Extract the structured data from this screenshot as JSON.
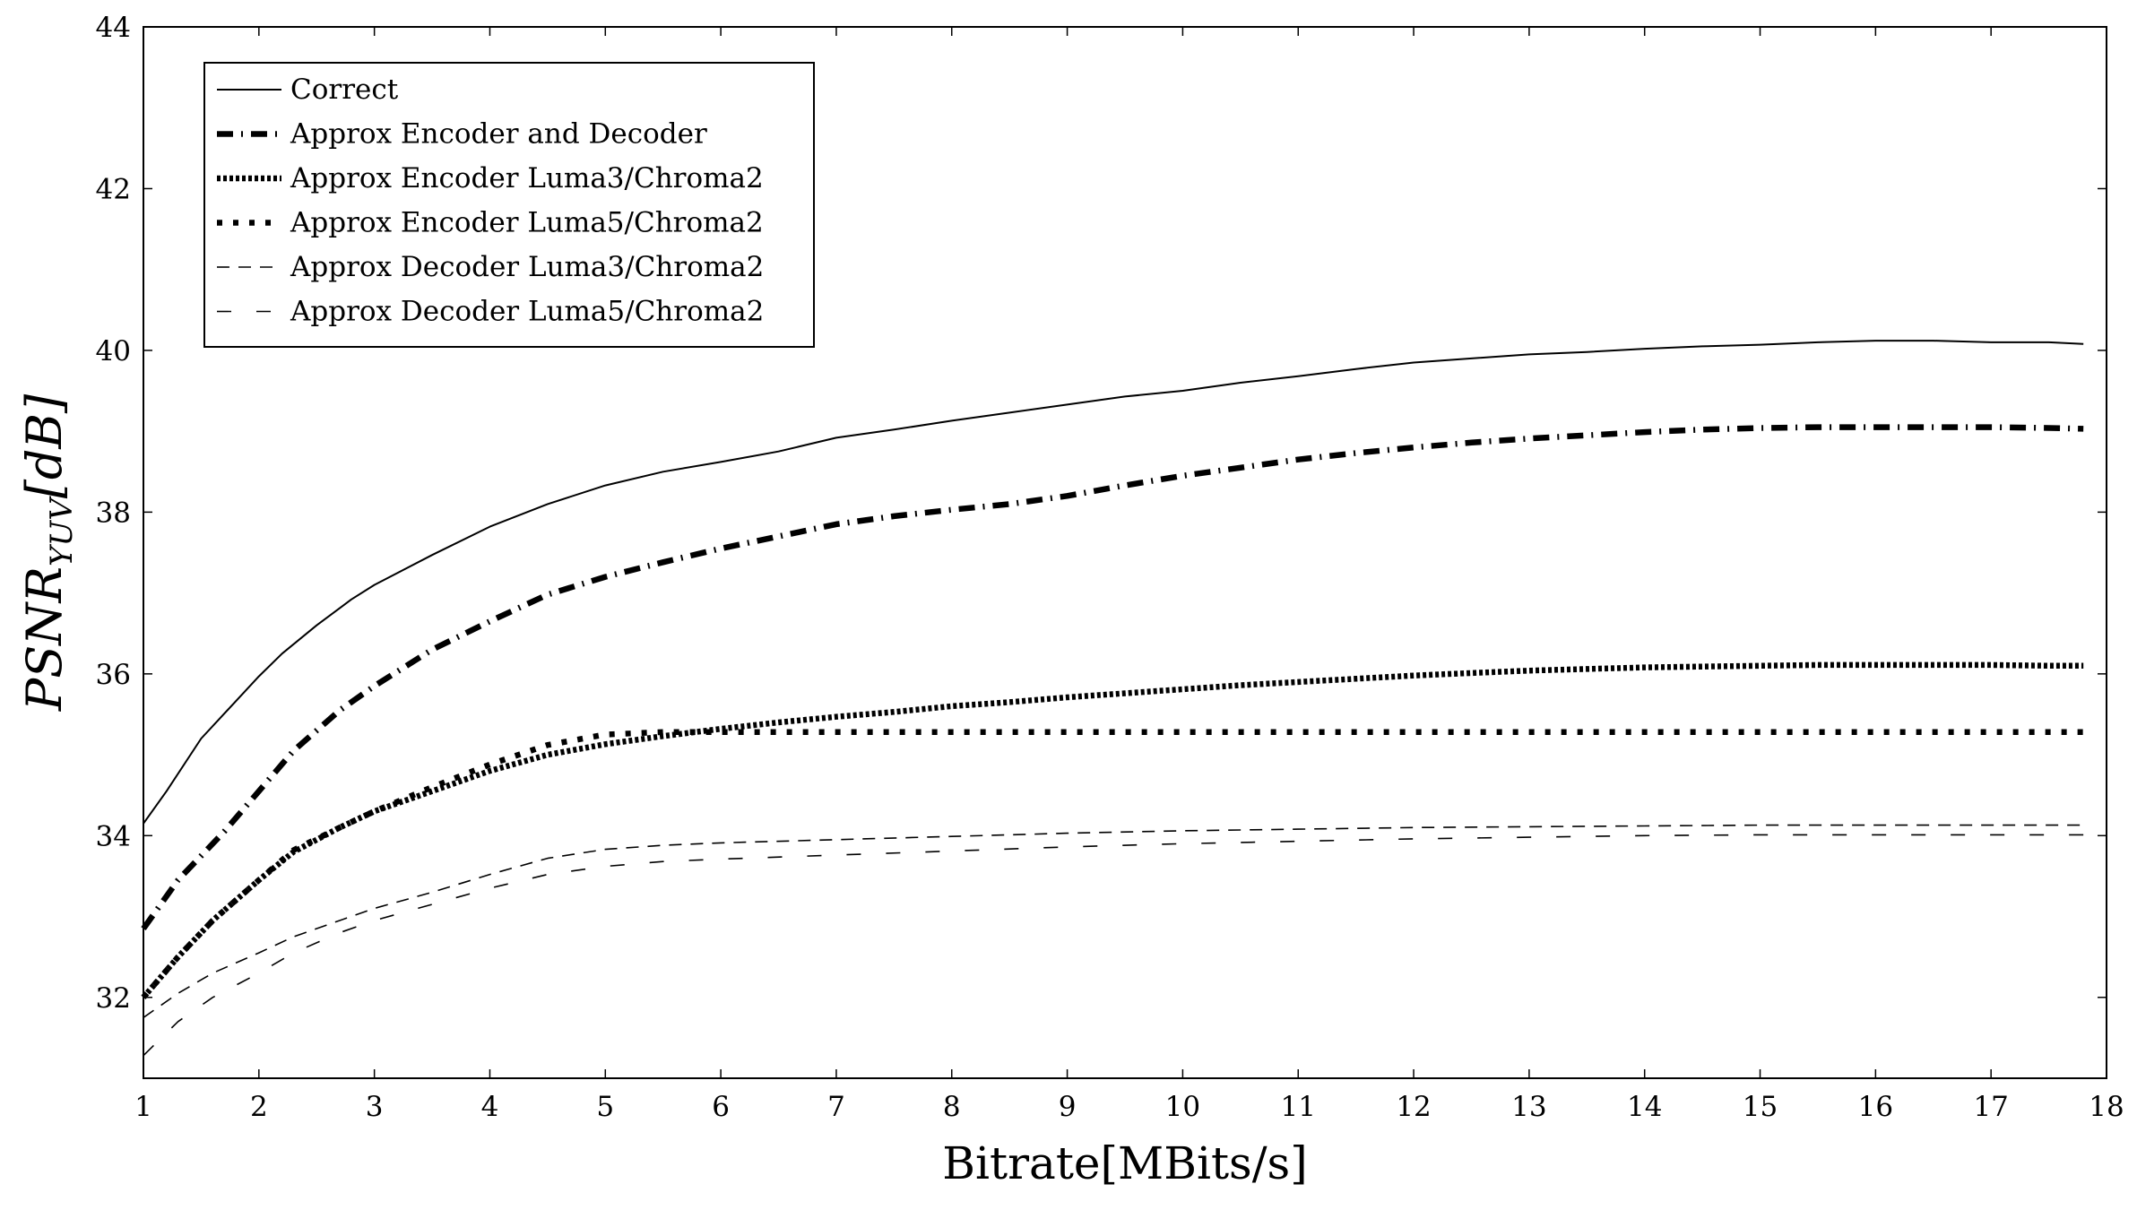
{
  "chart_data": {
    "type": "line",
    "xlabel": "Bitrate[MBits/s]",
    "ylabel": "PSNR",
    "ylabel_subscript": "YUV",
    "ylabel_unit": "[dB]",
    "xlim": [
      1,
      18
    ],
    "ylim": [
      31,
      44
    ],
    "x_ticks": [
      1,
      2,
      3,
      4,
      5,
      6,
      7,
      8,
      9,
      10,
      11,
      12,
      13,
      14,
      15,
      16,
      17,
      18
    ],
    "y_ticks": [
      32,
      34,
      36,
      38,
      40,
      42,
      44
    ],
    "grid": false,
    "legend_position": "top-left",
    "series": [
      {
        "name": "Correct",
        "style": "solid-thin",
        "x": [
          1,
          1.2,
          1.5,
          2,
          2.2,
          2.5,
          2.8,
          3,
          3.5,
          4,
          4.5,
          5,
          5.5,
          6,
          6.5,
          7,
          7.5,
          8,
          8.5,
          9,
          9.5,
          10,
          10.5,
          11,
          11.5,
          12,
          12.5,
          13,
          13.5,
          14,
          14.5,
          15,
          15.5,
          16,
          16.5,
          17,
          17.5,
          17.8
        ],
        "y": [
          34.15,
          34.55,
          35.2,
          35.97,
          36.25,
          36.6,
          36.92,
          37.1,
          37.47,
          37.82,
          38.1,
          38.33,
          38.5,
          38.62,
          38.75,
          38.92,
          39.02,
          39.13,
          39.23,
          39.33,
          39.43,
          39.5,
          39.6,
          39.68,
          39.77,
          39.85,
          39.9,
          39.95,
          39.98,
          40.02,
          40.05,
          40.07,
          40.1,
          40.12,
          40.12,
          40.1,
          40.1,
          40.08
        ]
      },
      {
        "name": "Approx Encoder and Decoder",
        "style": "dashdot-thick",
        "x": [
          1,
          1.3,
          1.7,
          2,
          2.3,
          2.7,
          3,
          3.5,
          4,
          4.5,
          5,
          5.5,
          6,
          6.5,
          7,
          7.5,
          8,
          8.5,
          9,
          9.5,
          10,
          10.5,
          11,
          11.5,
          12,
          12.5,
          13,
          13.5,
          14,
          14.5,
          15,
          15.5,
          16,
          16.5,
          17,
          17.5,
          17.8
        ],
        "y": [
          32.85,
          33.45,
          34.05,
          34.55,
          35.05,
          35.55,
          35.85,
          36.3,
          36.65,
          36.98,
          37.2,
          37.38,
          37.55,
          37.7,
          37.85,
          37.95,
          38.03,
          38.1,
          38.2,
          38.33,
          38.45,
          38.55,
          38.65,
          38.73,
          38.8,
          38.86,
          38.91,
          38.95,
          38.99,
          39.02,
          39.04,
          39.05,
          39.05,
          39.05,
          39.05,
          39.04,
          39.03
        ]
      },
      {
        "name": "Approx Encoder Luma3/Chroma2",
        "style": "densely-dotted-thick",
        "x": [
          1,
          1.3,
          1.6,
          2,
          2.3,
          2.7,
          3,
          3.5,
          4,
          4.5,
          5,
          5.5,
          6,
          6.5,
          7,
          7.5,
          8,
          8.5,
          9,
          9.5,
          10,
          10.5,
          11,
          11.5,
          12,
          12.5,
          13,
          13.5,
          14,
          14.5,
          15,
          15.5,
          16,
          16.5,
          17,
          17.5,
          17.8
        ],
        "y": [
          32,
          32.5,
          32.95,
          33.45,
          33.8,
          34.1,
          34.3,
          34.55,
          34.8,
          35.0,
          35.13,
          35.23,
          35.32,
          35.4,
          35.47,
          35.53,
          35.6,
          35.65,
          35.71,
          35.76,
          35.81,
          35.86,
          35.9,
          35.94,
          35.98,
          36.01,
          36.04,
          36.06,
          36.08,
          36.09,
          36.1,
          36.11,
          36.11,
          36.11,
          36.11,
          36.1,
          36.1
        ]
      },
      {
        "name": "Approx Encoder Luma5/Chroma2",
        "style": "dotted-thick",
        "x": [
          1,
          1.3,
          1.6,
          2,
          2.3,
          2.7,
          3,
          3.5,
          4,
          4.5,
          5,
          5.5,
          6,
          7,
          8,
          9,
          10,
          11,
          12,
          13,
          14,
          15,
          16,
          17,
          17.8
        ],
        "y": [
          32,
          32.5,
          32.95,
          33.45,
          33.82,
          34.1,
          34.3,
          34.6,
          34.88,
          35.12,
          35.25,
          35.28,
          35.28,
          35.28,
          35.28,
          35.28,
          35.28,
          35.28,
          35.28,
          35.28,
          35.28,
          35.28,
          35.28,
          35.28,
          35.28
        ]
      },
      {
        "name": "Approx Decoder Luma3/Chroma2",
        "style": "dashed-thin",
        "x": [
          1,
          1.3,
          1.6,
          2,
          2.3,
          2.7,
          3,
          3.5,
          4,
          4.5,
          5,
          5.5,
          6,
          7,
          8,
          9,
          10,
          11,
          12,
          13,
          14,
          15,
          16,
          17,
          17.8
        ],
        "y": [
          31.75,
          32.05,
          32.3,
          32.55,
          32.75,
          32.95,
          33.1,
          33.3,
          33.52,
          33.72,
          33.83,
          33.88,
          33.91,
          33.95,
          33.99,
          34.03,
          34.06,
          34.08,
          34.1,
          34.11,
          34.12,
          34.13,
          34.13,
          34.13,
          34.13
        ]
      },
      {
        "name": "Approx Decoder Luma5/Chroma2",
        "style": "dashed-loose",
        "x": [
          1,
          1.3,
          1.6,
          2,
          2.3,
          2.7,
          3,
          3.5,
          4,
          4.5,
          5,
          5.5,
          6,
          7,
          8,
          9,
          10,
          11,
          12,
          13,
          14,
          15,
          16,
          17,
          17.8
        ],
        "y": [
          31.28,
          31.7,
          32.0,
          32.3,
          32.55,
          32.8,
          32.95,
          33.15,
          33.35,
          33.52,
          33.62,
          33.68,
          33.71,
          33.76,
          33.81,
          33.86,
          33.9,
          33.93,
          33.96,
          33.98,
          34.0,
          34.01,
          34.01,
          34.01,
          34.01
        ]
      }
    ]
  }
}
